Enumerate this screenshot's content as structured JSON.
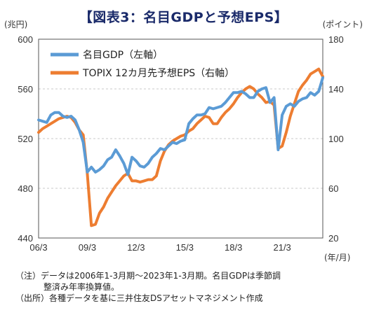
{
  "title": "【図表3：名目GDPと予想EPS】",
  "chart_data": {
    "type": "line",
    "x_unit": "(年/月)",
    "x_ticks": [
      "06/3",
      "09/3",
      "12/3",
      "15/3",
      "18/3",
      "21/3"
    ],
    "y_left": {
      "unit": "(兆円)",
      "ticks": [
        440,
        480,
        520,
        560,
        600
      ],
      "range": [
        440,
        600
      ]
    },
    "y_right": {
      "unit": "(ポイント)",
      "ticks": [
        20,
        60,
        100,
        140,
        180
      ],
      "range": [
        20,
        180
      ]
    },
    "legend_position": "top-left",
    "series": [
      {
        "name": "名目GDP（左軸）",
        "axis": "left",
        "color": "#5b9bd5",
        "x_range": [
          "2006-03",
          "2023-03"
        ],
        "values": [
          535,
          534,
          533,
          539,
          541,
          541,
          538,
          537,
          538,
          535,
          527,
          517,
          493,
          497,
          493,
          495,
          498,
          503,
          505,
          511,
          506,
          500,
          491,
          505,
          502,
          498,
          497,
          500,
          505,
          508,
          512,
          511,
          514,
          517,
          516,
          518,
          519,
          532,
          536,
          539,
          539,
          540,
          545,
          544,
          545,
          546,
          549,
          553,
          557,
          557,
          558,
          556,
          553,
          553,
          558,
          560,
          561,
          549,
          553,
          511,
          539,
          546,
          548,
          546,
          550,
          552,
          553,
          557,
          555,
          558,
          569
        ]
      },
      {
        "name": "TOPIX 12カ月先予想EPS（右軸）",
        "axis": "right",
        "color": "#ed7d31",
        "x_range": [
          "2006-03",
          "2023-03"
        ],
        "values": [
          105,
          108,
          110,
          112,
          114,
          116,
          117,
          118,
          117,
          113,
          107,
          103,
          72,
          30,
          31,
          40,
          45,
          52,
          57,
          62,
          66,
          70,
          72,
          66,
          66,
          65,
          66,
          67,
          67,
          70,
          82,
          90,
          95,
          98,
          100,
          102,
          103,
          106,
          108,
          112,
          115,
          118,
          117,
          112,
          112,
          117,
          121,
          124,
          128,
          133,
          137,
          140,
          142,
          140,
          136,
          133,
          129,
          130,
          127,
          92,
          94,
          105,
          118,
          128,
          138,
          143,
          147,
          152,
          154,
          156,
          150
        ]
      }
    ]
  },
  "notes": [
    "（注）データは2006年1-3月期～2023年1-3月期。名目GDPは季節調",
    "整済み年率換算値。",
    "（出所）各種データを基に三井住友DSアセットマネジメント作成"
  ]
}
